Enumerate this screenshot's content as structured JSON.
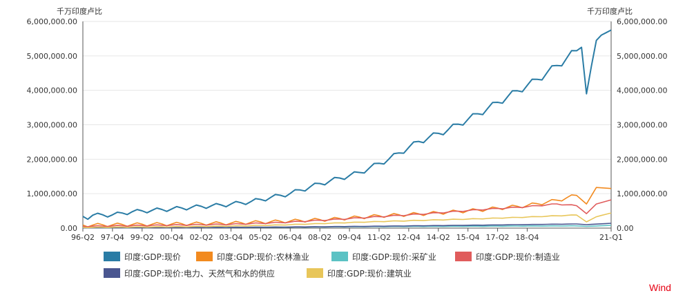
{
  "chart_data": {
    "type": "line",
    "unit_left": "千万印度卢比",
    "unit_right": "千万印度卢比",
    "brand": "Wind",
    "ylim": [
      0,
      6000000
    ],
    "y_ticks": [
      "0.00",
      "1,000,000.00",
      "2,000,000.00",
      "3,000,000.00",
      "4,000,000.00",
      "5,000,000.00",
      "6,000,000.00"
    ],
    "x_range": [
      "96-Q2",
      "21-Q1"
    ],
    "x_tick_labels": [
      "96-Q2",
      "97-Q4",
      "99-Q2",
      "00-Q4",
      "02-Q2",
      "03-Q4",
      "05-Q2",
      "06-Q4",
      "08-Q2",
      "09-Q4",
      "11-Q2",
      "12-Q4",
      "14-Q2",
      "15-Q4",
      "17-Q2",
      "18-Q4",
      "21-Q1"
    ],
    "grid": true,
    "legend_position": "bottom",
    "series": [
      {
        "name": "印度:GDP:现价",
        "color": "#2a7ca5",
        "anchors": [
          [
            0,
            330000
          ],
          [
            1,
            310000
          ],
          [
            2,
            370000
          ],
          [
            6,
            380000
          ],
          [
            10,
            470000
          ],
          [
            18,
            550000
          ],
          [
            24,
            620000
          ],
          [
            28,
            660000
          ],
          [
            34,
            760000
          ],
          [
            42,
            1000000
          ],
          [
            48,
            1280000
          ],
          [
            56,
            1600000
          ],
          [
            62,
            2000000
          ],
          [
            68,
            2500000
          ],
          [
            74,
            2850000
          ],
          [
            80,
            3300000
          ],
          [
            86,
            3800000
          ],
          [
            92,
            4300000
          ],
          [
            96,
            4700000
          ],
          [
            100,
            5150000
          ],
          [
            101,
            5250000
          ],
          [
            102,
            3900000
          ],
          [
            103,
            4700000
          ],
          [
            104,
            5450000
          ],
          [
            105,
            5600000
          ],
          [
            107,
            5750000
          ]
        ],
        "amp": 55000,
        "amp_growth": 0.012,
        "amp_cap": 140000
      },
      {
        "name": "印度:GDP:现价:农林渔业",
        "color": "#f28a1f",
        "anchors": [
          [
            0,
            80000
          ],
          [
            10,
            100000
          ],
          [
            20,
            120000
          ],
          [
            30,
            140000
          ],
          [
            40,
            190000
          ],
          [
            50,
            250000
          ],
          [
            60,
            350000
          ],
          [
            70,
            420000
          ],
          [
            80,
            520000
          ],
          [
            90,
            650000
          ],
          [
            96,
            800000
          ],
          [
            100,
            950000
          ],
          [
            102,
            700000
          ],
          [
            104,
            1180000
          ],
          [
            107,
            1150000
          ]
        ],
        "amp": 50000,
        "amp_growth": 0.004,
        "amp_cap": 180000
      },
      {
        "name": "印度:GDP:现价:采矿业",
        "color": "#5bc2c4",
        "anchors": [
          [
            0,
            10000
          ],
          [
            20,
            15000
          ],
          [
            40,
            25000
          ],
          [
            60,
            45000
          ],
          [
            80,
            55000
          ],
          [
            100,
            65000
          ],
          [
            102,
            50000
          ],
          [
            107,
            80000
          ]
        ],
        "amp": 4000,
        "amp_growth": 0.0002,
        "amp_cap": 8000
      },
      {
        "name": "印度:GDP:现价:制造业",
        "color": "#e05c5c",
        "anchors": [
          [
            0,
            50000
          ],
          [
            10,
            70000
          ],
          [
            20,
            90000
          ],
          [
            30,
            110000
          ],
          [
            40,
            160000
          ],
          [
            50,
            240000
          ],
          [
            60,
            330000
          ],
          [
            70,
            420000
          ],
          [
            80,
            530000
          ],
          [
            90,
            620000
          ],
          [
            96,
            700000
          ],
          [
            100,
            650000
          ],
          [
            102,
            420000
          ],
          [
            104,
            700000
          ],
          [
            107,
            820000
          ]
        ],
        "amp": 15000,
        "amp_growth": 0.0015,
        "amp_cap": 40000
      },
      {
        "name": "印度:GDP:现价:电力、天然气和水的供应",
        "color": "#4a5690",
        "anchors": [
          [
            0,
            8000
          ],
          [
            20,
            15000
          ],
          [
            40,
            30000
          ],
          [
            60,
            55000
          ],
          [
            80,
            85000
          ],
          [
            100,
            120000
          ],
          [
            102,
            100000
          ],
          [
            107,
            140000
          ]
        ],
        "amp": 2500,
        "amp_growth": 0.0001,
        "amp_cap": 6000
      },
      {
        "name": "印度:GDP:现价:建筑业",
        "color": "#e8c65a",
        "anchors": [
          [
            0,
            20000
          ],
          [
            10,
            30000
          ],
          [
            20,
            40000
          ],
          [
            30,
            60000
          ],
          [
            40,
            90000
          ],
          [
            50,
            140000
          ],
          [
            60,
            190000
          ],
          [
            70,
            230000
          ],
          [
            80,
            270000
          ],
          [
            90,
            320000
          ],
          [
            100,
            380000
          ],
          [
            102,
            180000
          ],
          [
            104,
            330000
          ],
          [
            107,
            440000
          ]
        ],
        "amp": 8000,
        "amp_growth": 0.0008,
        "amp_cap": 25000
      }
    ]
  }
}
